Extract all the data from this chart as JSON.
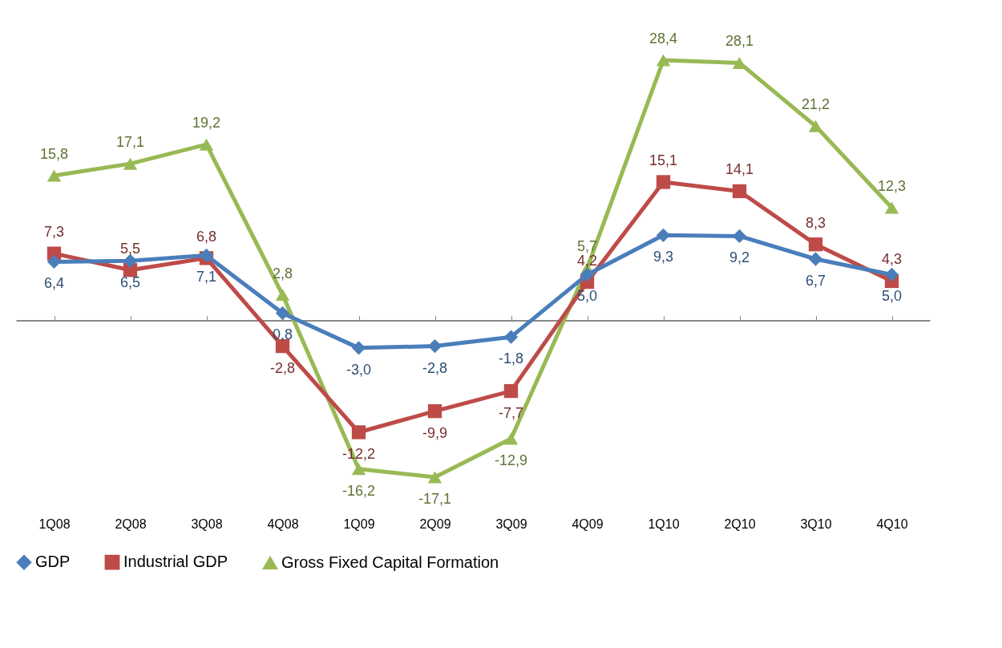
{
  "chart_data": {
    "type": "line",
    "categories": [
      "1Q08",
      "2Q08",
      "3Q08",
      "4Q08",
      "1Q09",
      "2Q09",
      "3Q09",
      "4Q09",
      "1Q10",
      "2Q10",
      "3Q10",
      "4Q10"
    ],
    "tick_labels": "x",
    "legend": "bottom",
    "series": [
      {
        "name": "GDP",
        "color": "#4a7ebb",
        "marker": "diamond",
        "line_style": "solid",
        "values": [
          6.4,
          6.5,
          7.1,
          0.8,
          -3.0,
          -2.8,
          -1.8,
          5.0,
          9.3,
          9.2,
          6.7,
          5.0
        ],
        "value_labels": [
          "6,4",
          "6,5",
          "7,1",
          "0,8",
          "-3,0",
          "-2,8",
          "-1,8",
          "5,0",
          "9,3",
          "9,2",
          "6,7",
          "5,0"
        ]
      },
      {
        "name": "Industrial GDP",
        "color": "#be4b48",
        "marker": "square",
        "line_style": "solid",
        "values": [
          7.3,
          5.5,
          6.8,
          -2.8,
          -12.2,
          -9.9,
          -7.7,
          4.2,
          15.1,
          14.1,
          8.3,
          4.3
        ],
        "value_labels": [
          "7,3",
          "5,5",
          "6,8",
          "-2,8",
          "-12,2",
          "-9,9",
          "-7,7",
          "4,2",
          "15,1",
          "14,1",
          "8,3",
          "4,3"
        ]
      },
      {
        "name": "Gross Fixed Capital Formation",
        "color": "#98b954",
        "marker": "triangle",
        "line_style": "solid",
        "values": [
          15.8,
          17.1,
          19.2,
          2.8,
          -16.2,
          -17.1,
          -12.9,
          5.7,
          28.4,
          28.1,
          21.2,
          12.3
        ],
        "value_labels": [
          "15,8",
          "17,1",
          "19,2",
          "2,8",
          "-16,2",
          "-17,1",
          "-12,9",
          "5,7",
          "28,4",
          "28,1",
          "21,2",
          "12,3"
        ]
      }
    ]
  }
}
